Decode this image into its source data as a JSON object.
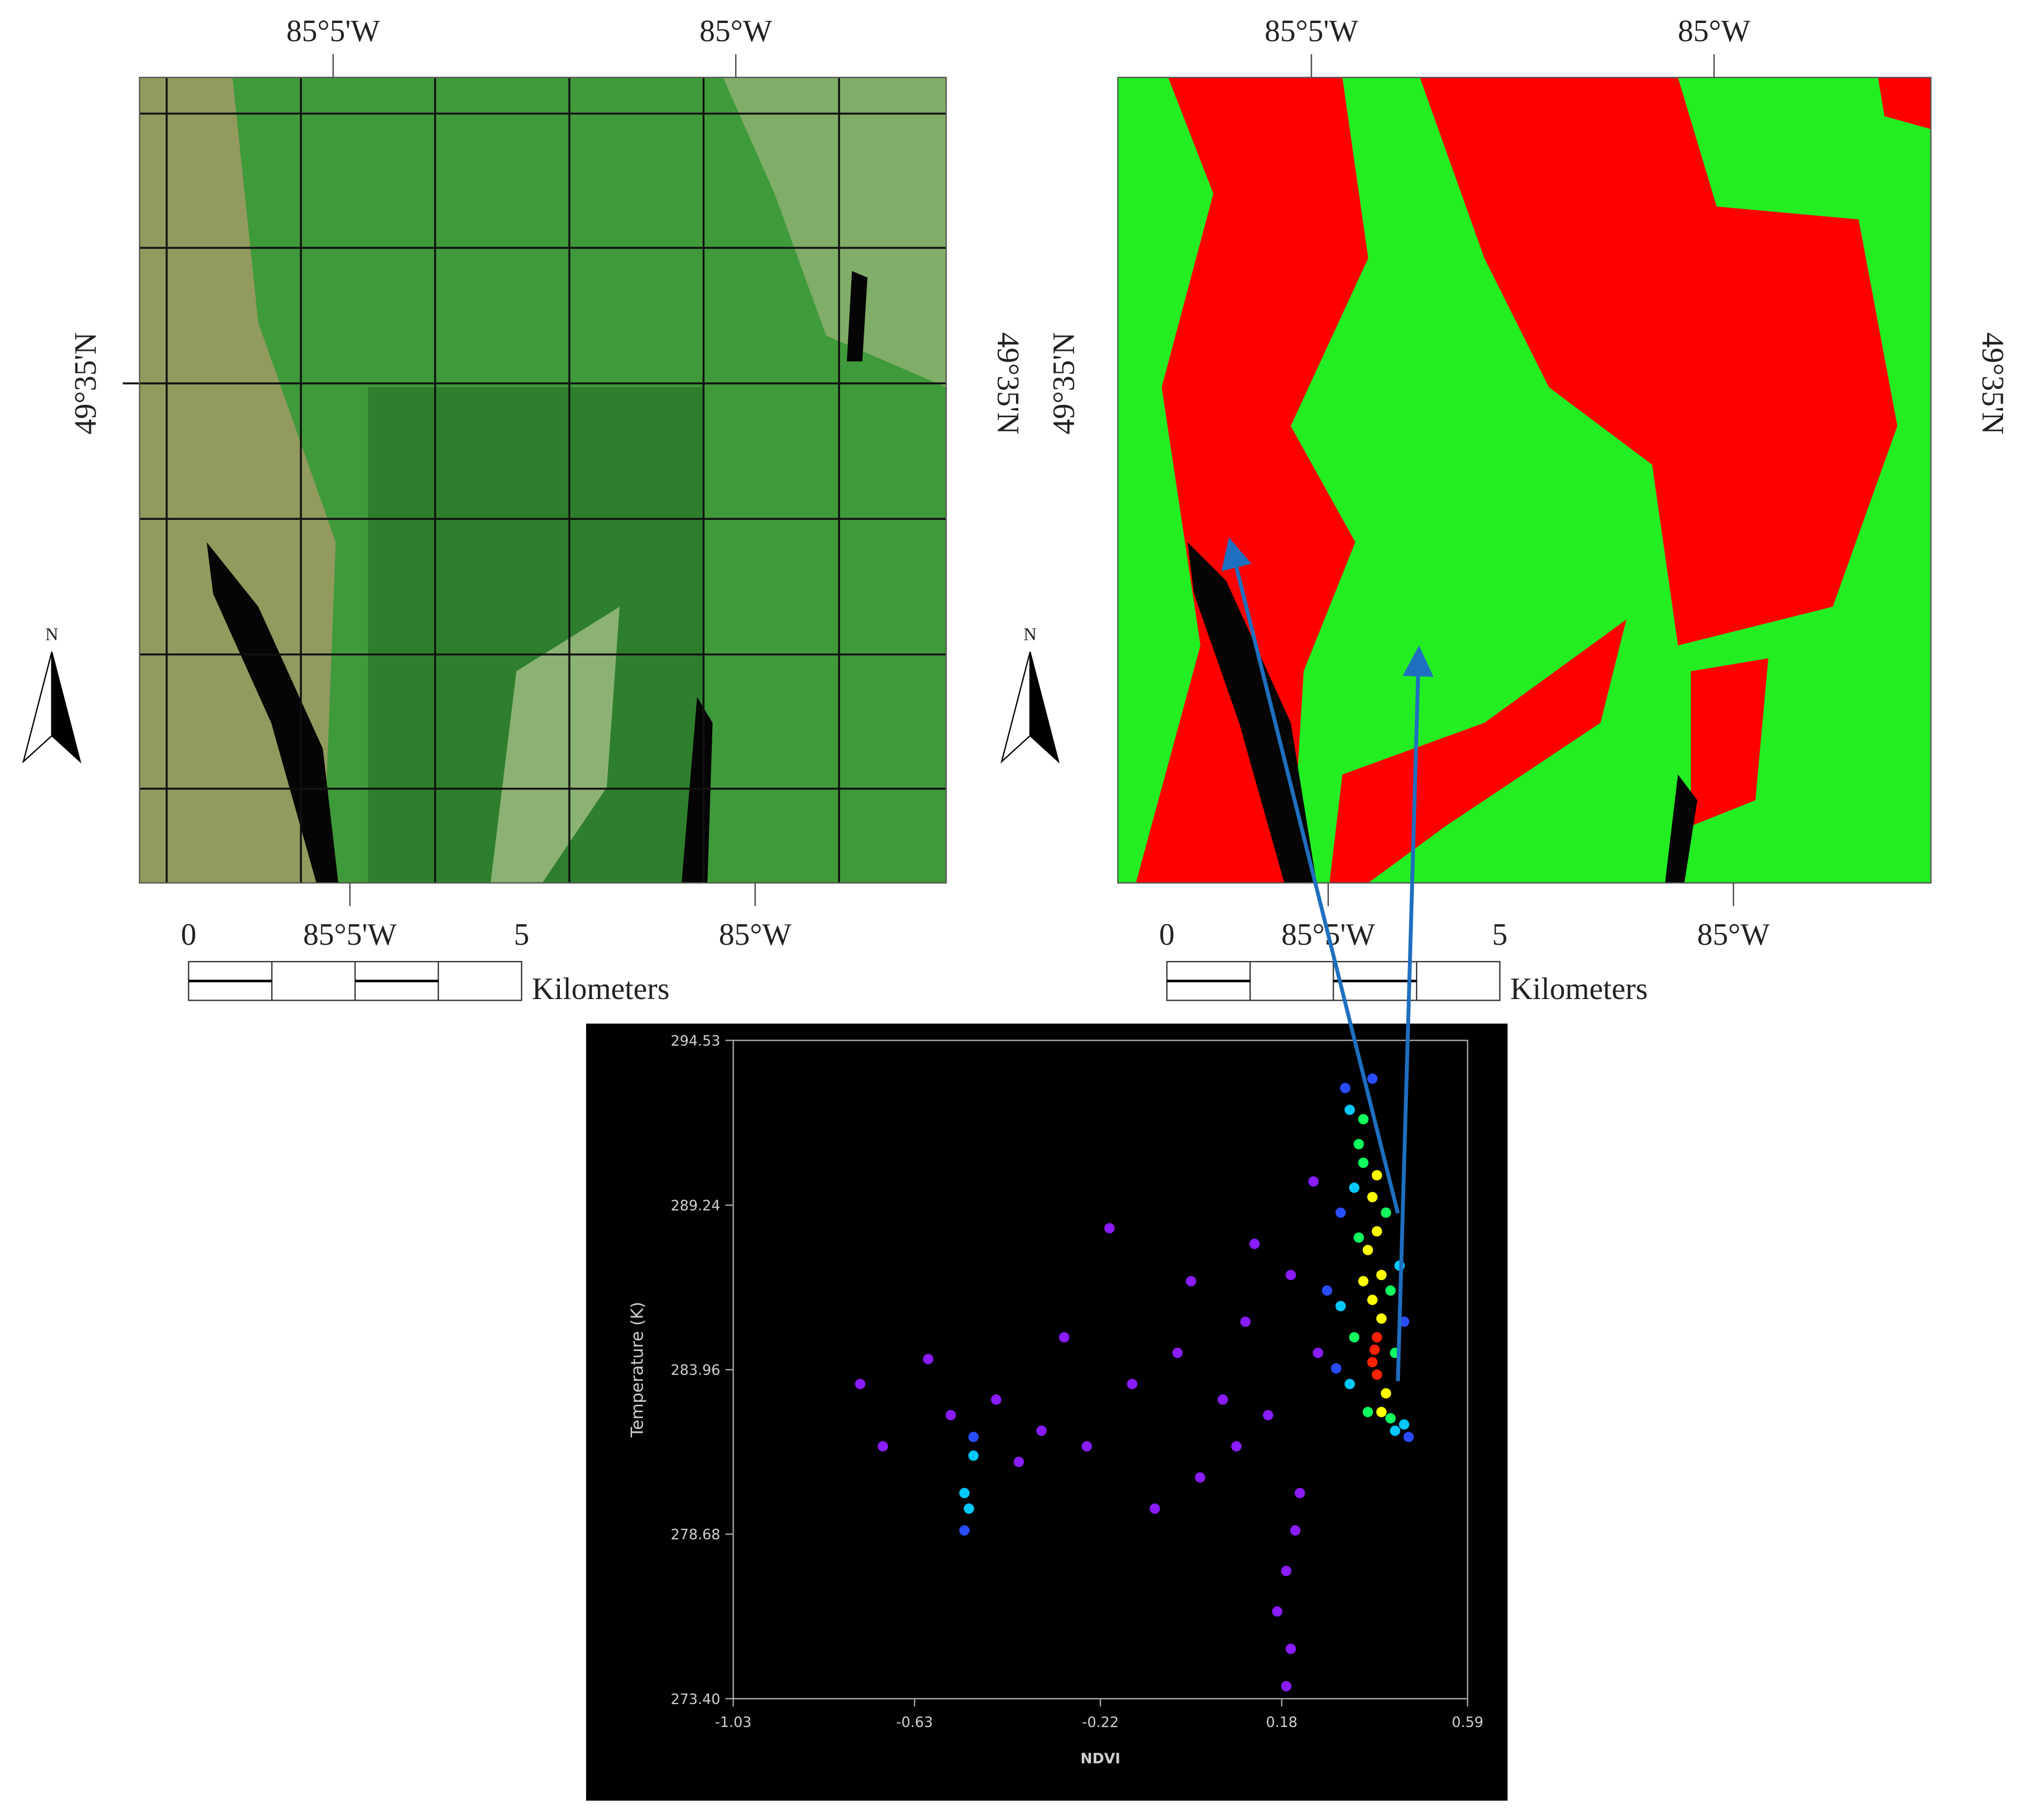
{
  "maps": [
    {
      "lon_top": [
        "85°5'W",
        "85°W"
      ],
      "lat_left": "49°35'N",
      "lat_right": "49°35'N",
      "north": "N",
      "lon_bottom": [
        "85°5'W",
        "85°W"
      ],
      "scale": [
        "0",
        "5"
      ],
      "scale_unit": "Kilometers"
    },
    {
      "lon_top": [
        "85°5'W",
        "85°W"
      ],
      "lat_left": "49°35'N",
      "lat_right": "49°35'N",
      "north": "N",
      "lon_bottom": [
        "85°5'W",
        "85°W"
      ],
      "scale": [
        "0",
        "5"
      ],
      "scale_unit": "Kilometers"
    }
  ],
  "chart_data": {
    "type": "scatter",
    "x_label": "NDVI",
    "y_label": "Temperature (K)",
    "xlim": [
      -1.03,
      0.59
    ],
    "xticks": [
      -1.03,
      -0.63,
      -0.22,
      0.18,
      0.59
    ],
    "ylim": [
      273.4,
      294.53
    ],
    "yticks": [
      {
        "value": 273.4,
        "label": "273.40"
      },
      278.68,
      283.96,
      289.24,
      294.53
    ],
    "background": "#000000",
    "series": [
      {
        "color": "#8a1cff",
        "x": [
          -0.6,
          -0.45,
          -0.35,
          -0.25,
          -0.15,
          -0.05,
          0.05,
          0.1,
          0.15,
          0.2,
          0.22,
          0.19,
          0.2,
          0.19,
          -0.3,
          -0.4,
          -0.2,
          0.0,
          -0.1,
          0.25,
          0.12,
          -0.55,
          -0.7,
          -0.75,
          0.26,
          0.08,
          -0.02,
          0.21,
          0.17
        ],
        "y": [
          284.3,
          283.0,
          282.0,
          281.5,
          283.5,
          284.5,
          283.0,
          285.5,
          282.5,
          287.0,
          280.0,
          277.5,
          275.0,
          273.8,
          285.0,
          281.0,
          288.5,
          280.5,
          279.5,
          290.0,
          288.0,
          282.5,
          281.5,
          283.5,
          284.5,
          281.5,
          286.8,
          278.8,
          276.2
        ]
      },
      {
        "color": "#2a4cff",
        "x": [
          0.32,
          0.3,
          0.45,
          -0.52,
          -0.5,
          0.28,
          0.31,
          0.46,
          0.38
        ],
        "y": [
          293.0,
          284.0,
          285.5,
          278.8,
          281.8,
          286.5,
          289.0,
          281.8,
          293.3
        ]
      },
      {
        "color": "#00c8ff",
        "x": [
          0.33,
          0.34,
          0.43,
          0.33,
          0.44,
          -0.52,
          -0.51,
          -0.5,
          0.31,
          0.45
        ],
        "y": [
          292.3,
          289.8,
          282.0,
          283.5,
          287.3,
          280.0,
          279.5,
          281.2,
          286.0,
          282.2
        ]
      },
      {
        "color": "#10ff60",
        "x": [
          0.35,
          0.36,
          0.41,
          0.42,
          0.34,
          0.37,
          0.42,
          0.35,
          0.43,
          0.36
        ],
        "y": [
          291.2,
          290.6,
          289.0,
          286.5,
          285.0,
          282.6,
          282.4,
          288.2,
          284.5,
          292.0
        ]
      },
      {
        "color": "#ffff00",
        "x": [
          0.37,
          0.39,
          0.4,
          0.38,
          0.4,
          0.38,
          0.39,
          0.36,
          0.41,
          0.4
        ],
        "y": [
          287.8,
          288.4,
          287.0,
          286.2,
          285.6,
          289.5,
          290.2,
          286.8,
          283.2,
          282.6
        ]
      },
      {
        "color": "#ff2200",
        "x": [
          0.38,
          0.39,
          0.385,
          0.39
        ],
        "y": [
          284.2,
          283.8,
          284.6,
          285.0
        ]
      }
    ]
  }
}
